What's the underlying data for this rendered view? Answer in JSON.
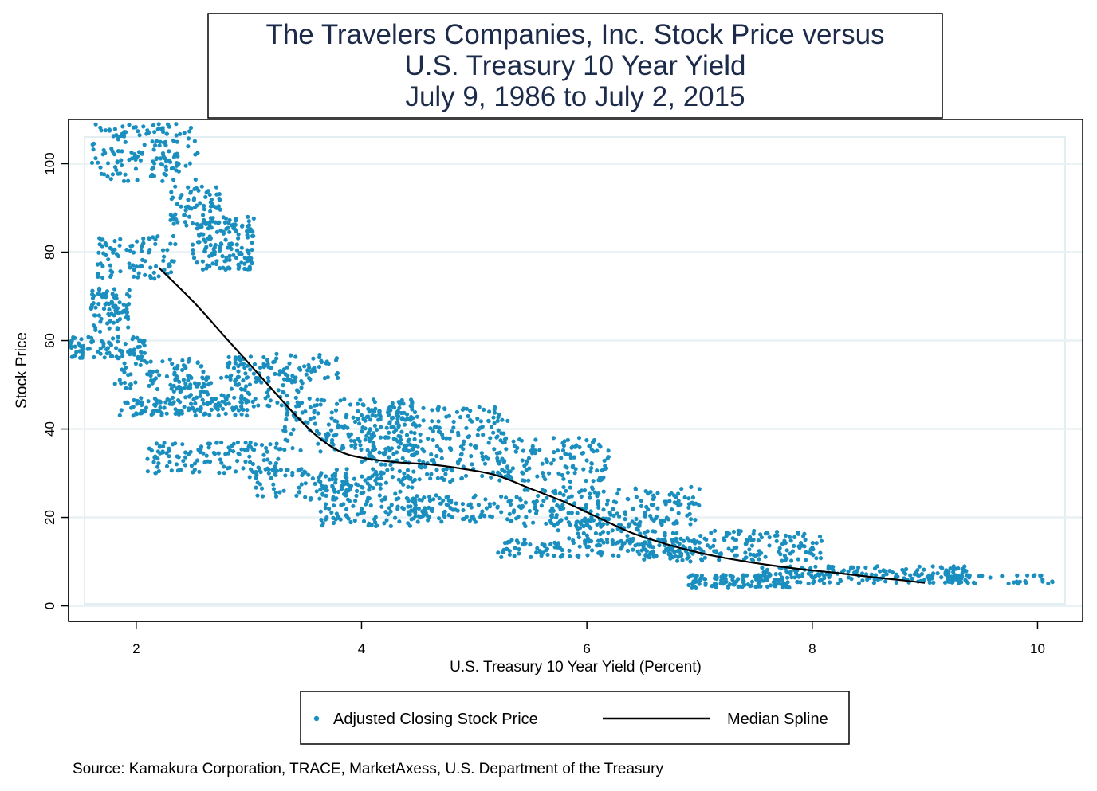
{
  "chart_data": {
    "type": "scatter",
    "title": [
      "The Travelers Companies, Inc. Stock Price versus",
      "U.S. Treasury 10 Year Yield",
      "July 9, 1986 to July 2, 2015"
    ],
    "xlabel": "U.S. Treasury 10 Year Yield (Percent)",
    "ylabel": "Stock Price",
    "xlim": [
      1.4,
      10.4
    ],
    "ylim": [
      -3.5,
      110
    ],
    "xticks": [
      2,
      4,
      6,
      8,
      10
    ],
    "yticks": [
      0,
      20,
      40,
      60,
      80,
      100
    ],
    "grid": true,
    "legend": {
      "position": "bottom",
      "entries": [
        "Adjusted Closing Stock Price",
        "Median Spline"
      ]
    },
    "source": "Source: Kamakura Corporation, TRACE, MarketAxess, U.S. Department of the Treasury",
    "colors": {
      "points": "#1a8fbf",
      "spline": "#000000",
      "title_text": "#1c2b4a",
      "grid": "#e8f1f4",
      "plot_region_border": "#e3eef2"
    },
    "series": [
      {
        "name": "Adjusted Closing Stock Price",
        "kind": "scatter",
        "clusters": [
          {
            "x": [
              1.6,
              2.55
            ],
            "y": [
              96,
              109
            ],
            "n": 150
          },
          {
            "x": [
              2.3,
              2.75
            ],
            "y": [
              86,
              95
            ],
            "n": 70
          },
          {
            "x": [
              2.5,
              3.05
            ],
            "y": [
              76,
              88
            ],
            "n": 150
          },
          {
            "x": [
              1.65,
              2.35
            ],
            "y": [
              74,
              84
            ],
            "n": 90
          },
          {
            "x": [
              1.6,
              1.95
            ],
            "y": [
              62,
              72
            ],
            "n": 80
          },
          {
            "x": [
              1.4,
              2.1
            ],
            "y": [
              56,
              61
            ],
            "n": 90
          },
          {
            "x": [
              1.8,
              2.6
            ],
            "y": [
              49,
              56
            ],
            "n": 80
          },
          {
            "x": [
              1.85,
              3.0
            ],
            "y": [
              43,
              47
            ],
            "n": 110
          },
          {
            "x": [
              2.3,
              3.5
            ],
            "y": [
              45,
              52
            ],
            "n": 110
          },
          {
            "x": [
              2.8,
              3.8
            ],
            "y": [
              51,
              57
            ],
            "n": 90
          },
          {
            "x": [
              2.1,
              3.3
            ],
            "y": [
              30,
              37
            ],
            "n": 130
          },
          {
            "x": [
              3.0,
              3.9
            ],
            "y": [
              24,
              31
            ],
            "n": 70
          },
          {
            "x": [
              3.3,
              4.5
            ],
            "y": [
              34,
              47
            ],
            "n": 200
          },
          {
            "x": [
              3.6,
              4.5
            ],
            "y": [
              18,
              30
            ],
            "n": 160
          },
          {
            "x": [
              4.0,
              5.3
            ],
            "y": [
              28,
              45
            ],
            "n": 260
          },
          {
            "x": [
              4.4,
              5.4
            ],
            "y": [
              19,
              25
            ],
            "n": 110
          },
          {
            "x": [
              5.2,
              6.2
            ],
            "y": [
              28,
              38
            ],
            "n": 130
          },
          {
            "x": [
              5.4,
              7.0
            ],
            "y": [
              18,
              27
            ],
            "n": 190
          },
          {
            "x": [
              5.2,
              7.0
            ],
            "y": [
              11,
              15
            ],
            "n": 140
          },
          {
            "x": [
              5.7,
              6.5
            ],
            "y": [
              14,
              20
            ],
            "n": 70
          },
          {
            "x": [
              6.5,
              8.1
            ],
            "y": [
              10,
              17
            ],
            "n": 180
          },
          {
            "x": [
              6.9,
              7.8
            ],
            "y": [
              4,
              7
            ],
            "n": 110
          },
          {
            "x": [
              7.5,
              9.4
            ],
            "y": [
              5,
              9
            ],
            "n": 200
          },
          {
            "x": [
              9.2,
              10.2
            ],
            "y": [
              5,
              7
            ],
            "n": 40
          }
        ]
      },
      {
        "name": "Median Spline",
        "kind": "line",
        "x": [
          2.2,
          2.5,
          2.8,
          3.1,
          3.4,
          3.6,
          3.8,
          4.0,
          4.3,
          4.6,
          4.9,
          5.2,
          5.5,
          5.8,
          6.1,
          6.4,
          6.7,
          7.0,
          7.3,
          7.6,
          7.9,
          8.2,
          8.5,
          8.8,
          9.0
        ],
        "y": [
          76.5,
          69,
          60.5,
          52,
          43.5,
          38.5,
          35,
          33.5,
          32.5,
          32,
          31,
          29.5,
          26.5,
          23.5,
          20,
          16.5,
          14,
          12,
          10.5,
          9.3,
          8.3,
          7.5,
          6.6,
          5.8,
          5.2
        ]
      }
    ]
  }
}
